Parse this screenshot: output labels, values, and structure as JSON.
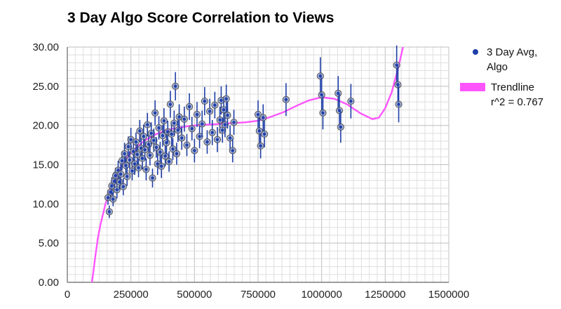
{
  "chart_data": {
    "type": "scatter",
    "title": "3 Day Algo Score Correlation to Views",
    "xlabel": "",
    "ylabel": "",
    "xlim": [
      0,
      1500000
    ],
    "ylim": [
      0,
      30
    ],
    "x_ticks": [
      "0",
      "250000",
      "500000",
      "750000",
      "1000000",
      "1250000",
      "1500000"
    ],
    "y_ticks": [
      "0.00",
      "5.00",
      "10.00",
      "15.00",
      "20.00",
      "25.00",
      "30.00"
    ],
    "grid": true,
    "legend_position": "right",
    "series": [
      {
        "name": "3 Day Avg,\nAlgo",
        "kind": "scatter-with-error-bars",
        "color": "#1f3fa8",
        "marker_fill": "#8a99c9",
        "points": [
          {
            "x": 160000,
            "y": 10.8,
            "err": 0.9
          },
          {
            "x": 165000,
            "y": 9.0,
            "err": 0.8
          },
          {
            "x": 170000,
            "y": 11.5,
            "err": 1.0
          },
          {
            "x": 175000,
            "y": 12.3,
            "err": 1.1
          },
          {
            "x": 180000,
            "y": 10.6,
            "err": 0.9
          },
          {
            "x": 185000,
            "y": 12.9,
            "err": 1.2
          },
          {
            "x": 190000,
            "y": 13.6,
            "err": 1.0
          },
          {
            "x": 195000,
            "y": 11.8,
            "err": 1.1
          },
          {
            "x": 200000,
            "y": 14.3,
            "err": 1.2
          },
          {
            "x": 205000,
            "y": 12.8,
            "err": 1.0
          },
          {
            "x": 210000,
            "y": 13.8,
            "err": 1.3
          },
          {
            "x": 215000,
            "y": 15.5,
            "err": 1.2
          },
          {
            "x": 220000,
            "y": 12.2,
            "err": 1.1
          },
          {
            "x": 225000,
            "y": 16.4,
            "err": 1.4
          },
          {
            "x": 230000,
            "y": 14.9,
            "err": 1.2
          },
          {
            "x": 235000,
            "y": 13.5,
            "err": 1.2
          },
          {
            "x": 240000,
            "y": 17.3,
            "err": 1.3
          },
          {
            "x": 245000,
            "y": 15.6,
            "err": 1.1
          },
          {
            "x": 250000,
            "y": 18.2,
            "err": 1.5
          },
          {
            "x": 255000,
            "y": 14.2,
            "err": 1.2
          },
          {
            "x": 260000,
            "y": 16.7,
            "err": 1.3
          },
          {
            "x": 265000,
            "y": 15.1,
            "err": 1.4
          },
          {
            "x": 270000,
            "y": 17.9,
            "err": 1.2
          },
          {
            "x": 275000,
            "y": 16.3,
            "err": 1.3
          },
          {
            "x": 280000,
            "y": 14.6,
            "err": 1.2
          },
          {
            "x": 285000,
            "y": 19.3,
            "err": 1.4
          },
          {
            "x": 290000,
            "y": 17.1,
            "err": 1.3
          },
          {
            "x": 295000,
            "y": 15.8,
            "err": 1.4
          },
          {
            "x": 300000,
            "y": 18.6,
            "err": 1.5
          },
          {
            "x": 305000,
            "y": 16.9,
            "err": 1.3
          },
          {
            "x": 310000,
            "y": 14.4,
            "err": 1.4
          },
          {
            "x": 315000,
            "y": 20.1,
            "err": 1.5
          },
          {
            "x": 320000,
            "y": 17.6,
            "err": 1.2
          },
          {
            "x": 325000,
            "y": 16.2,
            "err": 1.3
          },
          {
            "x": 330000,
            "y": 19.0,
            "err": 1.4
          },
          {
            "x": 335000,
            "y": 13.3,
            "err": 1.2
          },
          {
            "x": 340000,
            "y": 18.1,
            "err": 1.5
          },
          {
            "x": 345000,
            "y": 21.6,
            "err": 1.6
          },
          {
            "x": 350000,
            "y": 17.2,
            "err": 1.3
          },
          {
            "x": 355000,
            "y": 15.1,
            "err": 1.4
          },
          {
            "x": 360000,
            "y": 19.7,
            "err": 1.5
          },
          {
            "x": 365000,
            "y": 16.6,
            "err": 1.3
          },
          {
            "x": 370000,
            "y": 14.8,
            "err": 1.5
          },
          {
            "x": 375000,
            "y": 18.7,
            "err": 1.4
          },
          {
            "x": 380000,
            "y": 20.6,
            "err": 1.6
          },
          {
            "x": 385000,
            "y": 16.1,
            "err": 1.3
          },
          {
            "x": 390000,
            "y": 17.8,
            "err": 1.5
          },
          {
            "x": 395000,
            "y": 19.2,
            "err": 1.4
          },
          {
            "x": 400000,
            "y": 15.4,
            "err": 1.3
          },
          {
            "x": 405000,
            "y": 22.7,
            "err": 1.7
          },
          {
            "x": 410000,
            "y": 18.9,
            "err": 1.5
          },
          {
            "x": 415000,
            "y": 17.0,
            "err": 1.4
          },
          {
            "x": 420000,
            "y": 20.3,
            "err": 1.6
          },
          {
            "x": 425000,
            "y": 25.0,
            "err": 1.8
          },
          {
            "x": 430000,
            "y": 16.4,
            "err": 1.4
          },
          {
            "x": 435000,
            "y": 19.4,
            "err": 1.5
          },
          {
            "x": 440000,
            "y": 21.1,
            "err": 1.6
          },
          {
            "x": 450000,
            "y": 18.4,
            "err": 1.5
          },
          {
            "x": 460000,
            "y": 20.8,
            "err": 1.6
          },
          {
            "x": 470000,
            "y": 17.5,
            "err": 1.4
          },
          {
            "x": 480000,
            "y": 22.4,
            "err": 1.7
          },
          {
            "x": 490000,
            "y": 19.6,
            "err": 1.5
          },
          {
            "x": 500000,
            "y": 16.8,
            "err": 1.5
          },
          {
            "x": 510000,
            "y": 21.4,
            "err": 1.6
          },
          {
            "x": 520000,
            "y": 18.6,
            "err": 1.5
          },
          {
            "x": 530000,
            "y": 20.2,
            "err": 1.7
          },
          {
            "x": 540000,
            "y": 23.1,
            "err": 1.8
          },
          {
            "x": 550000,
            "y": 17.9,
            "err": 1.5
          },
          {
            "x": 560000,
            "y": 21.8,
            "err": 1.6
          },
          {
            "x": 570000,
            "y": 19.1,
            "err": 1.6
          },
          {
            "x": 580000,
            "y": 22.6,
            "err": 1.7
          },
          {
            "x": 590000,
            "y": 18.2,
            "err": 1.6
          },
          {
            "x": 600000,
            "y": 20.7,
            "err": 1.7
          },
          {
            "x": 605000,
            "y": 23.2,
            "err": 1.8
          },
          {
            "x": 610000,
            "y": 19.4,
            "err": 1.6
          },
          {
            "x": 615000,
            "y": 22.0,
            "err": 1.7
          },
          {
            "x": 620000,
            "y": 20.1,
            "err": 1.6
          },
          {
            "x": 625000,
            "y": 23.4,
            "err": 1.8
          },
          {
            "x": 630000,
            "y": 21.3,
            "err": 1.7
          },
          {
            "x": 640000,
            "y": 18.4,
            "err": 1.6
          },
          {
            "x": 650000,
            "y": 16.8,
            "err": 1.5
          },
          {
            "x": 655000,
            "y": 20.4,
            "err": 1.6
          },
          {
            "x": 750000,
            "y": 21.4,
            "err": 1.8
          },
          {
            "x": 755000,
            "y": 19.3,
            "err": 1.7
          },
          {
            "x": 760000,
            "y": 17.4,
            "err": 1.6
          },
          {
            "x": 770000,
            "y": 21.0,
            "err": 1.7
          },
          {
            "x": 775000,
            "y": 18.9,
            "err": 1.7
          },
          {
            "x": 860000,
            "y": 23.3,
            "err": 2.1
          },
          {
            "x": 995000,
            "y": 26.3,
            "err": 2.4
          },
          {
            "x": 1000000,
            "y": 23.9,
            "err": 2.2
          },
          {
            "x": 1005000,
            "y": 21.6,
            "err": 2.1
          },
          {
            "x": 1065000,
            "y": 24.1,
            "err": 2.2
          },
          {
            "x": 1070000,
            "y": 21.9,
            "err": 2.1
          },
          {
            "x": 1075000,
            "y": 19.8,
            "err": 2.0
          },
          {
            "x": 1115000,
            "y": 23.1,
            "err": 2.2
          },
          {
            "x": 1295000,
            "y": 27.7,
            "err": 2.5
          },
          {
            "x": 1300000,
            "y": 25.2,
            "err": 2.4
          },
          {
            "x": 1303000,
            "y": 22.7,
            "err": 2.3
          }
        ]
      },
      {
        "name": "Trendline\nr^2 = 0.767",
        "kind": "trendline",
        "color": "#ff55ff",
        "points": [
          {
            "x": 97000,
            "y": 0.0
          },
          {
            "x": 110000,
            "y": 3.3
          },
          {
            "x": 120000,
            "y": 5.6
          },
          {
            "x": 130000,
            "y": 7.3
          },
          {
            "x": 150000,
            "y": 10.0
          },
          {
            "x": 175000,
            "y": 12.4
          },
          {
            "x": 200000,
            "y": 14.1
          },
          {
            "x": 225000,
            "y": 15.4
          },
          {
            "x": 250000,
            "y": 16.5
          },
          {
            "x": 300000,
            "y": 18.0
          },
          {
            "x": 350000,
            "y": 18.9
          },
          {
            "x": 400000,
            "y": 19.5
          },
          {
            "x": 450000,
            "y": 19.8
          },
          {
            "x": 500000,
            "y": 20.0
          },
          {
            "x": 550000,
            "y": 20.1
          },
          {
            "x": 600000,
            "y": 20.2
          },
          {
            "x": 650000,
            "y": 20.3
          },
          {
            "x": 700000,
            "y": 20.4
          },
          {
            "x": 750000,
            "y": 20.6
          },
          {
            "x": 800000,
            "y": 21.1
          },
          {
            "x": 850000,
            "y": 21.7
          },
          {
            "x": 900000,
            "y": 22.5
          },
          {
            "x": 950000,
            "y": 23.2
          },
          {
            "x": 1000000,
            "y": 23.6
          },
          {
            "x": 1050000,
            "y": 23.4
          },
          {
            "x": 1100000,
            "y": 22.7
          },
          {
            "x": 1150000,
            "y": 21.6
          },
          {
            "x": 1200000,
            "y": 20.8
          },
          {
            "x": 1225000,
            "y": 21.0
          },
          {
            "x": 1250000,
            "y": 22.2
          },
          {
            "x": 1275000,
            "y": 24.2
          },
          {
            "x": 1300000,
            "y": 27.2
          },
          {
            "x": 1320000,
            "y": 30.0
          }
        ]
      }
    ]
  }
}
